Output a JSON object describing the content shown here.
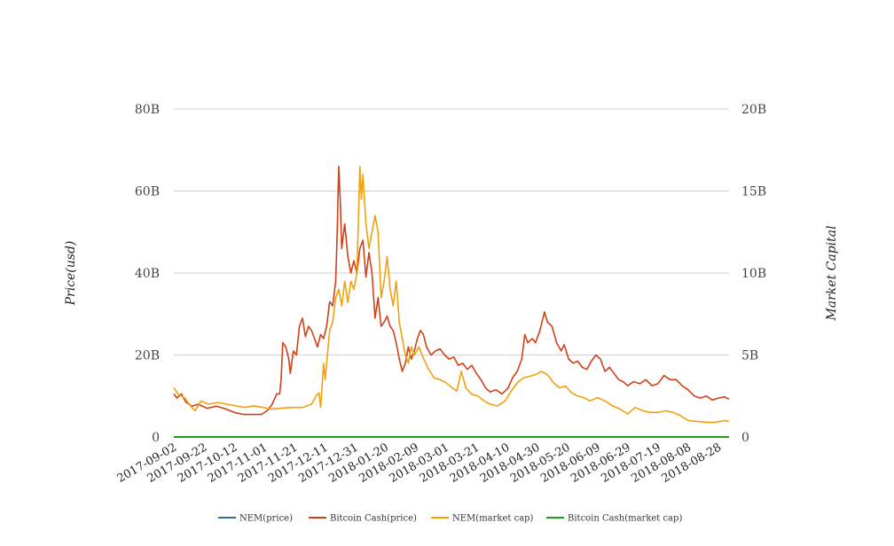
{
  "chart_data": {
    "type": "line",
    "title": "",
    "ylabel_left": "Price(usd)",
    "ylabel_right": "Market Capital",
    "y_left": {
      "min": 0,
      "max": 80000000000,
      "ticks": [
        0,
        20000000000,
        40000000000,
        60000000000,
        80000000000
      ],
      "tick_labels": [
        "0",
        "20B",
        "40B",
        "60B",
        "80B"
      ]
    },
    "y_right": {
      "min": 0,
      "max": 20000000000,
      "ticks": [
        0,
        5000000000,
        10000000000,
        15000000000,
        20000000000
      ],
      "tick_labels": [
        "0",
        "5B",
        "10B",
        "15B",
        "20B"
      ]
    },
    "grid": "horizontal",
    "x_start": "2017-09-02",
    "x_end": "2018-09-04",
    "x_tick_labels": [
      "2017-09-02",
      "2017-09-22",
      "2017-10-12",
      "2017-11-01",
      "2017-11-21",
      "2017-12-11",
      "2017-12-31",
      "2018-01-20",
      "2018-02-09",
      "2018-03-01",
      "2018-03-21",
      "2018-04-10",
      "2018-04-30",
      "2018-05-20",
      "2018-06-09",
      "2018-06-29",
      "2018-07-19",
      "2018-08-08",
      "2018-08-28"
    ],
    "legend_position": "bottom",
    "series": [
      {
        "name": "NEM(price)",
        "axis": "left",
        "color": "#2a6fb0",
        "points": [
          [
            "2017-09-02",
            0.3
          ],
          [
            "2018-09-04",
            0.1
          ]
        ]
      },
      {
        "name": "Bitcoin Cash(price)",
        "axis": "left",
        "color": "#d2401a",
        "points": [
          [
            "2017-09-02",
            10500000000.0
          ],
          [
            "2017-09-04",
            9500000000.0
          ],
          [
            "2017-09-07",
            10500000000.0
          ],
          [
            "2017-09-10",
            8500000000.0
          ],
          [
            "2017-09-14",
            7500000000.0
          ],
          [
            "2017-09-18",
            8000000000.0
          ],
          [
            "2017-09-24",
            7000000000.0
          ],
          [
            "2017-09-30",
            7500000000.0
          ],
          [
            "2017-10-05",
            7000000000.0
          ],
          [
            "2017-10-12",
            6000000000.0
          ],
          [
            "2017-10-18",
            5500000000.0
          ],
          [
            "2017-10-24",
            5500000000.0
          ],
          [
            "2017-10-30",
            5500000000.0
          ],
          [
            "2017-11-03",
            6500000000.0
          ],
          [
            "2017-11-06",
            8000000000.0
          ],
          [
            "2017-11-09",
            10500000000.0
          ],
          [
            "2017-11-11",
            10500000000.0
          ],
          [
            "2017-11-12",
            14500000000.0
          ],
          [
            "2017-11-13",
            23000000000.0
          ],
          [
            "2017-11-15",
            22000000000.0
          ],
          [
            "2017-11-17",
            19000000000.0
          ],
          [
            "2017-11-18",
            15500000000.0
          ],
          [
            "2017-11-20",
            21000000000.0
          ],
          [
            "2017-11-22",
            20000000000.0
          ],
          [
            "2017-11-24",
            27000000000.0
          ],
          [
            "2017-11-26",
            29000000000.0
          ],
          [
            "2017-11-28",
            24500000000.0
          ],
          [
            "2017-11-30",
            27000000000.0
          ],
          [
            "2017-12-02",
            26000000000.0
          ],
          [
            "2017-12-04",
            24000000000.0
          ],
          [
            "2017-12-06",
            22000000000.0
          ],
          [
            "2017-12-08",
            25000000000.0
          ],
          [
            "2017-12-10",
            24000000000.0
          ],
          [
            "2017-12-12",
            27000000000.0
          ],
          [
            "2017-12-14",
            33000000000.0
          ],
          [
            "2017-12-16",
            32000000000.0
          ],
          [
            "2017-12-18",
            38000000000.0
          ],
          [
            "2017-12-19",
            50000000000.0
          ],
          [
            "2017-12-20",
            66000000000.0
          ],
          [
            "2017-12-21",
            58000000000.0
          ],
          [
            "2017-12-22",
            46000000000.0
          ],
          [
            "2017-12-24",
            52000000000.0
          ],
          [
            "2017-12-26",
            44000000000.0
          ],
          [
            "2017-12-28",
            40000000000.0
          ],
          [
            "2017-12-30",
            43000000000.0
          ],
          [
            "2018-01-01",
            40000000000.0
          ],
          [
            "2018-01-03",
            46000000000.0
          ],
          [
            "2018-01-05",
            48000000000.0
          ],
          [
            "2018-01-07",
            39000000000.0
          ],
          [
            "2018-01-09",
            45000000000.0
          ],
          [
            "2018-01-11",
            40000000000.0
          ],
          [
            "2018-01-13",
            29000000000.0
          ],
          [
            "2018-01-15",
            34000000000.0
          ],
          [
            "2018-01-17",
            27000000000.0
          ],
          [
            "2018-01-19",
            28000000000.0
          ],
          [
            "2018-01-21",
            29500000000.0
          ],
          [
            "2018-01-23",
            27000000000.0
          ],
          [
            "2018-01-25",
            26000000000.0
          ],
          [
            "2018-01-27",
            23000000000.0
          ],
          [
            "2018-01-29",
            19000000000.0
          ],
          [
            "2018-01-31",
            16000000000.0
          ],
          [
            "2018-02-02",
            18000000000.0
          ],
          [
            "2018-02-04",
            22000000000.0
          ],
          [
            "2018-02-06",
            19000000000.0
          ],
          [
            "2018-02-08",
            21000000000.0
          ],
          [
            "2018-02-10",
            24000000000.0
          ],
          [
            "2018-02-12",
            26000000000.0
          ],
          [
            "2018-02-14",
            25000000000.0
          ],
          [
            "2018-02-16",
            22000000000.0
          ],
          [
            "2018-02-19",
            20000000000.0
          ],
          [
            "2018-02-22",
            21000000000.0
          ],
          [
            "2018-02-25",
            21500000000.0
          ],
          [
            "2018-02-28",
            20000000000.0
          ],
          [
            "2018-03-03",
            19000000000.0
          ],
          [
            "2018-03-06",
            19500000000.0
          ],
          [
            "2018-03-09",
            17500000000.0
          ],
          [
            "2018-03-12",
            18000000000.0
          ],
          [
            "2018-03-15",
            16500000000.0
          ],
          [
            "2018-03-18",
            17500000000.0
          ],
          [
            "2018-03-21",
            15500000000.0
          ],
          [
            "2018-03-24",
            14000000000.0
          ],
          [
            "2018-03-27",
            12000000000.0
          ],
          [
            "2018-03-30",
            11000000000.0
          ],
          [
            "2018-04-03",
            11500000000.0
          ],
          [
            "2018-04-07",
            10500000000.0
          ],
          [
            "2018-04-11",
            12000000000.0
          ],
          [
            "2018-04-14",
            14500000000.0
          ],
          [
            "2018-04-17",
            16000000000.0
          ],
          [
            "2018-04-20",
            19000000000.0
          ],
          [
            "2018-04-22",
            25000000000.0
          ],
          [
            "2018-04-24",
            23000000000.0
          ],
          [
            "2018-04-27",
            24000000000.0
          ],
          [
            "2018-04-29",
            23000000000.0
          ],
          [
            "2018-05-02",
            26000000000.0
          ],
          [
            "2018-05-05",
            30500000000.0
          ],
          [
            "2018-05-07",
            28000000000.0
          ],
          [
            "2018-05-10",
            27000000000.0
          ],
          [
            "2018-05-13",
            23000000000.0
          ],
          [
            "2018-05-16",
            21000000000.0
          ],
          [
            "2018-05-18",
            22500000000.0
          ],
          [
            "2018-05-21",
            19000000000.0
          ],
          [
            "2018-05-24",
            18000000000.0
          ],
          [
            "2018-05-27",
            18500000000.0
          ],
          [
            "2018-05-30",
            17000000000.0
          ],
          [
            "2018-06-02",
            16500000000.0
          ],
          [
            "2018-06-05",
            18500000000.0
          ],
          [
            "2018-06-08",
            20000000000.0
          ],
          [
            "2018-06-11",
            19000000000.0
          ],
          [
            "2018-06-14",
            16000000000.0
          ],
          [
            "2018-06-17",
            17000000000.0
          ],
          [
            "2018-06-20",
            15500000000.0
          ],
          [
            "2018-06-23",
            14000000000.0
          ],
          [
            "2018-06-26",
            13500000000.0
          ],
          [
            "2018-06-29",
            12500000000.0
          ],
          [
            "2018-07-03",
            13500000000.0
          ],
          [
            "2018-07-07",
            13000000000.0
          ],
          [
            "2018-07-11",
            14000000000.0
          ],
          [
            "2018-07-15",
            12500000000.0
          ],
          [
            "2018-07-19",
            13000000000.0
          ],
          [
            "2018-07-23",
            15000000000.0
          ],
          [
            "2018-07-27",
            14000000000.0
          ],
          [
            "2018-07-31",
            14000000000.0
          ],
          [
            "2018-08-04",
            12500000000.0
          ],
          [
            "2018-08-08",
            11500000000.0
          ],
          [
            "2018-08-12",
            10000000000.0
          ],
          [
            "2018-08-16",
            9500000000.0
          ],
          [
            "2018-08-20",
            10000000000.0
          ],
          [
            "2018-08-24",
            9000000000.0
          ],
          [
            "2018-08-28",
            9500000000.0
          ],
          [
            "2018-09-01",
            9800000000.0
          ],
          [
            "2018-09-04",
            9200000000.0
          ]
        ]
      },
      {
        "name": "NEM(market cap)",
        "axis": "right",
        "color": "#f0a10c",
        "points": [
          [
            "2017-09-02",
            3000000000.0
          ],
          [
            "2017-09-05",
            2600000000.0
          ],
          [
            "2017-09-09",
            2400000000.0
          ],
          [
            "2017-09-13",
            1900000000.0
          ],
          [
            "2017-09-16",
            1600000000.0
          ],
          [
            "2017-09-20",
            2200000000.0
          ],
          [
            "2017-09-25",
            2000000000.0
          ],
          [
            "2017-10-01",
            2100000000.0
          ],
          [
            "2017-10-07",
            2000000000.0
          ],
          [
            "2017-10-13",
            1900000000.0
          ],
          [
            "2017-10-19",
            1800000000.0
          ],
          [
            "2017-10-25",
            1900000000.0
          ],
          [
            "2017-10-31",
            1800000000.0
          ],
          [
            "2017-11-05",
            1700000000.0
          ],
          [
            "2017-11-12",
            1750000000.0
          ],
          [
            "2017-11-19",
            1800000000.0
          ],
          [
            "2017-11-26",
            1800000000.0
          ],
          [
            "2017-12-02",
            2000000000.0
          ],
          [
            "2017-12-05",
            2500000000.0
          ],
          [
            "2017-12-07",
            2700000000.0
          ],
          [
            "2017-12-08",
            1800000000.0
          ],
          [
            "2017-12-10",
            4500000000.0
          ],
          [
            "2017-12-11",
            3500000000.0
          ],
          [
            "2017-12-12",
            4500000000.0
          ],
          [
            "2017-12-14",
            6500000000.0
          ],
          [
            "2017-12-16",
            7000000000.0
          ],
          [
            "2017-12-18",
            8500000000.0
          ],
          [
            "2017-12-20",
            9000000000.0
          ],
          [
            "2017-12-22",
            8000000000.0
          ],
          [
            "2017-12-24",
            9500000000.0
          ],
          [
            "2017-12-26",
            8200000000.0
          ],
          [
            "2017-12-28",
            9500000000.0
          ],
          [
            "2017-12-30",
            9000000000.0
          ],
          [
            "2018-01-01",
            10000000000.0
          ],
          [
            "2018-01-03",
            16500000000.0
          ],
          [
            "2018-01-04",
            14500000000.0
          ],
          [
            "2018-01-05",
            16000000000.0
          ],
          [
            "2018-01-07",
            13000000000.0
          ],
          [
            "2018-01-09",
            11500000000.0
          ],
          [
            "2018-01-11",
            12500000000.0
          ],
          [
            "2018-01-13",
            13500000000.0
          ],
          [
            "2018-01-15",
            12500000000.0
          ],
          [
            "2018-01-17",
            8500000000.0
          ],
          [
            "2018-01-19",
            9500000000.0
          ],
          [
            "2018-01-21",
            11000000000.0
          ],
          [
            "2018-01-23",
            9000000000.0
          ],
          [
            "2018-01-25",
            8000000000.0
          ],
          [
            "2018-01-27",
            9500000000.0
          ],
          [
            "2018-01-29",
            7000000000.0
          ],
          [
            "2018-01-31",
            6000000000.0
          ],
          [
            "2018-02-02",
            5000000000.0
          ],
          [
            "2018-02-04",
            4500000000.0
          ],
          [
            "2018-02-06",
            5500000000.0
          ],
          [
            "2018-02-08",
            5000000000.0
          ],
          [
            "2018-02-11",
            5500000000.0
          ],
          [
            "2018-02-14",
            4800000000.0
          ],
          [
            "2018-02-17",
            4200000000.0
          ],
          [
            "2018-02-21",
            3600000000.0
          ],
          [
            "2018-02-25",
            3500000000.0
          ],
          [
            "2018-03-01",
            3300000000.0
          ],
          [
            "2018-03-05",
            3000000000.0
          ],
          [
            "2018-03-08",
            2800000000.0
          ],
          [
            "2018-03-11",
            4000000000.0
          ],
          [
            "2018-03-14",
            3000000000.0
          ],
          [
            "2018-03-18",
            2600000000.0
          ],
          [
            "2018-03-22",
            2500000000.0
          ],
          [
            "2018-03-26",
            2200000000.0
          ],
          [
            "2018-03-30",
            2000000000.0
          ],
          [
            "2018-04-04",
            1900000000.0
          ],
          [
            "2018-04-09",
            2200000000.0
          ],
          [
            "2018-04-13",
            2800000000.0
          ],
          [
            "2018-04-17",
            3300000000.0
          ],
          [
            "2018-04-21",
            3600000000.0
          ],
          [
            "2018-04-25",
            3700000000.0
          ],
          [
            "2018-04-29",
            3800000000.0
          ],
          [
            "2018-05-03",
            4000000000.0
          ],
          [
            "2018-05-07",
            3800000000.0
          ],
          [
            "2018-05-11",
            3300000000.0
          ],
          [
            "2018-05-15",
            3000000000.0
          ],
          [
            "2018-05-19",
            3100000000.0
          ],
          [
            "2018-05-23",
            2700000000.0
          ],
          [
            "2018-05-27",
            2500000000.0
          ],
          [
            "2018-05-31",
            2400000000.0
          ],
          [
            "2018-06-04",
            2200000000.0
          ],
          [
            "2018-06-09",
            2400000000.0
          ],
          [
            "2018-06-14",
            2200000000.0
          ],
          [
            "2018-06-19",
            1900000000.0
          ],
          [
            "2018-06-24",
            1700000000.0
          ],
          [
            "2018-06-29",
            1400000000.0
          ],
          [
            "2018-07-04",
            1800000000.0
          ],
          [
            "2018-07-09",
            1600000000.0
          ],
          [
            "2018-07-14",
            1500000000.0
          ],
          [
            "2018-07-19",
            1500000000.0
          ],
          [
            "2018-07-24",
            1600000000.0
          ],
          [
            "2018-07-29",
            1500000000.0
          ],
          [
            "2018-08-03",
            1300000000.0
          ],
          [
            "2018-08-08",
            1000000000.0
          ],
          [
            "2018-08-14",
            950000000.0
          ],
          [
            "2018-08-20",
            900000000.0
          ],
          [
            "2018-08-26",
            900000000.0
          ],
          [
            "2018-09-01",
            1000000000.0
          ],
          [
            "2018-09-04",
            950000000.0
          ]
        ]
      },
      {
        "name": "Bitcoin Cash(market cap)",
        "axis": "right",
        "color": "#1aa01a",
        "points": [
          [
            "2017-09-02",
            0.0
          ],
          [
            "2018-09-04",
            0.0
          ]
        ]
      }
    ]
  }
}
